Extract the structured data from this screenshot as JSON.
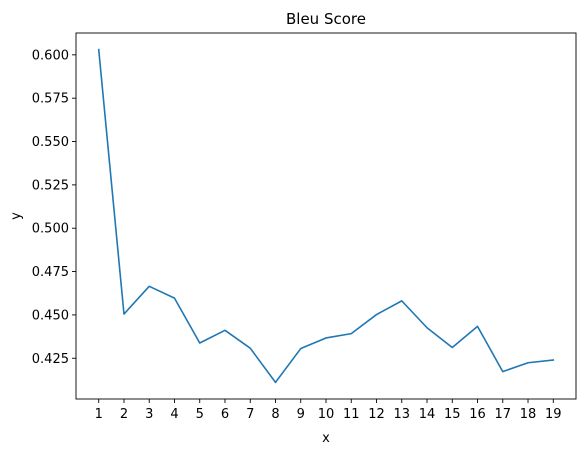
{
  "chart_data": {
    "type": "line",
    "title": "Bleu Score",
    "xlabel": "x",
    "ylabel": "y",
    "x": [
      1,
      2,
      3,
      4,
      5,
      6,
      7,
      8,
      9,
      10,
      11,
      12,
      13,
      14,
      15,
      16,
      17,
      18,
      19
    ],
    "series": [
      {
        "values": [
          0.603,
          0.4505,
          0.4665,
          0.4597,
          0.4338,
          0.4411,
          0.4308,
          0.4111,
          0.4306,
          0.4367,
          0.4392,
          0.4502,
          0.4581,
          0.4426,
          0.4312,
          0.4434,
          0.4173,
          0.4224,
          0.424
        ],
        "color": "#1f77b4"
      }
    ],
    "xticks": [
      "1",
      "2",
      "3",
      "4",
      "5",
      "6",
      "7",
      "8",
      "9",
      "10",
      "11",
      "12",
      "13",
      "14",
      "15",
      "16",
      "17",
      "18",
      "19"
    ],
    "yticks": [
      "0.425",
      "0.450",
      "0.475",
      "0.500",
      "0.525",
      "0.550",
      "0.575",
      "0.600"
    ],
    "xlim": [
      0.1,
      19.9
    ],
    "ylim": [
      0.4015,
      0.6126
    ],
    "grid": false,
    "legend": false
  }
}
